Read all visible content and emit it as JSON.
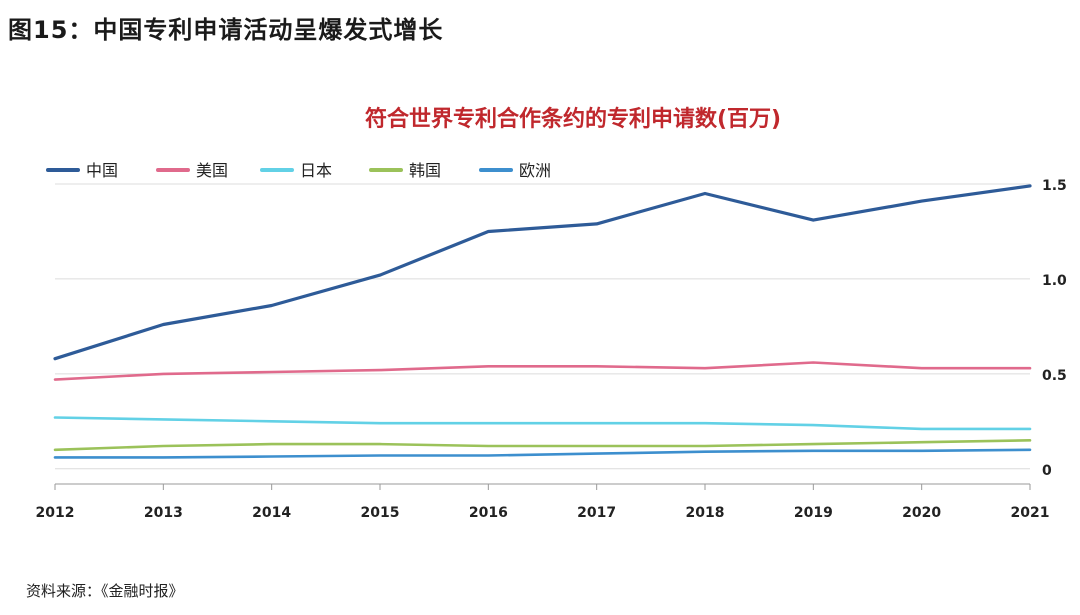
{
  "figure_label": "图15：中国专利申请活动呈爆发式增长",
  "source_note": "资料来源：《金融时报》",
  "chart_data": {
    "type": "line",
    "title": "符合世界专利合作条约的专利申请数(百万)",
    "xlabel": "",
    "ylabel": "",
    "x": [
      "2012",
      "2013",
      "2014",
      "2015",
      "2016",
      "2017",
      "2018",
      "2019",
      "2020",
      "2021"
    ],
    "ylim": [
      -0.08,
      1.6
    ],
    "yticks": [
      0,
      0.5,
      1.0,
      1.5
    ],
    "ytick_labels": [
      "0",
      "0.5",
      "1.0",
      "1.5"
    ],
    "grid": true,
    "legend_position": "top-left",
    "y_axis_side": "right",
    "series": [
      {
        "name": "中国",
        "color": "#2e5b98",
        "values": [
          0.58,
          0.76,
          0.86,
          1.02,
          1.25,
          1.29,
          1.45,
          1.31,
          1.41,
          1.49
        ]
      },
      {
        "name": "美国",
        "color": "#e06a8c",
        "values": [
          0.47,
          0.5,
          0.51,
          0.52,
          0.54,
          0.54,
          0.53,
          0.56,
          0.53,
          0.53
        ]
      },
      {
        "name": "日本",
        "color": "#62d1e6",
        "values": [
          0.27,
          0.26,
          0.25,
          0.24,
          0.24,
          0.24,
          0.24,
          0.23,
          0.21,
          0.21
        ]
      },
      {
        "name": "韩国",
        "color": "#9bc25a",
        "values": [
          0.1,
          0.12,
          0.13,
          0.13,
          0.12,
          0.12,
          0.12,
          0.13,
          0.14,
          0.15
        ]
      },
      {
        "name": "欧洲",
        "color": "#3d8fce",
        "values": [
          0.06,
          0.06,
          0.065,
          0.07,
          0.07,
          0.08,
          0.09,
          0.095,
          0.095,
          0.1
        ]
      }
    ]
  }
}
